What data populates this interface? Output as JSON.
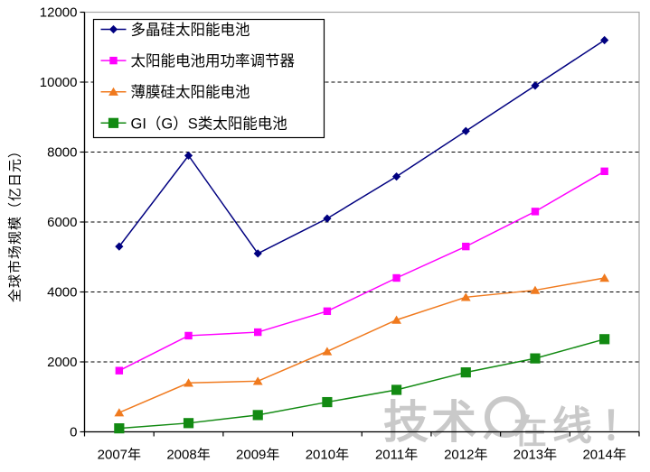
{
  "chart_data": {
    "type": "line",
    "title": "",
    "xlabel": "",
    "ylabel": "全球市场规模（亿日元）",
    "ylim": [
      0,
      12000
    ],
    "yticks": [
      0,
      2000,
      4000,
      6000,
      8000,
      10000,
      12000
    ],
    "grid": "horizontal-dashed",
    "legend_position": "top-left-inside",
    "categories": [
      "2007年",
      "2008年",
      "2009年",
      "2010年",
      "2011年",
      "2012年",
      "2013年",
      "2014年"
    ],
    "series": [
      {
        "name": "多晶硅太阳能电池",
        "marker": "diamond",
        "color": "#000080",
        "values": [
          5300,
          7900,
          5100,
          6100,
          7300,
          8600,
          9900,
          11200
        ]
      },
      {
        "name": "太阳能电池用功率调节器",
        "marker": "square",
        "color": "#FF00FF",
        "values": [
          1750,
          2750,
          2850,
          3450,
          4400,
          5300,
          6300,
          7450
        ]
      },
      {
        "name": "薄膜硅太阳能电池",
        "marker": "triangle",
        "color": "#F07A1E",
        "values": [
          550,
          1400,
          1450,
          2300,
          3200,
          3850,
          4050,
          4400
        ]
      },
      {
        "name": "GI（G）S类太阳能电池",
        "marker": "square-large",
        "color": "#128A12",
        "values": [
          100,
          250,
          480,
          850,
          1200,
          1700,
          2100,
          2650
        ]
      }
    ]
  },
  "watermark": {
    "prefix": "技术",
    "zai": "在",
    "xian": "线",
    "exclamation": "！",
    "color": "#c9c9c9"
  },
  "colors": {
    "axis": "#000000",
    "plot_border": "#a6a6a6",
    "gridline": "#000000",
    "background": "#ffffff"
  }
}
